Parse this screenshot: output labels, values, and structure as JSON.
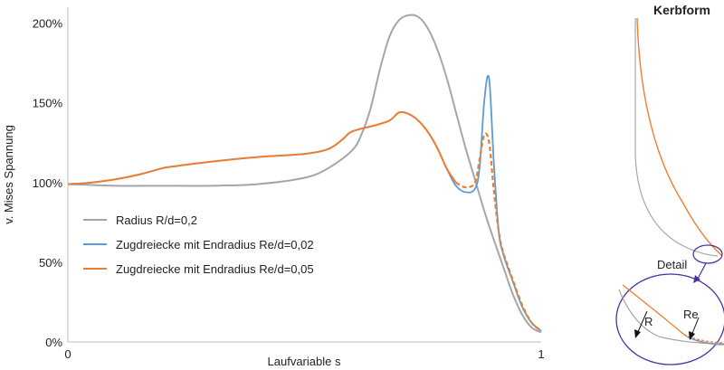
{
  "chart_data": {
    "type": "line",
    "title": "",
    "xlabel": "Laufvariable s",
    "ylabel": "v. Mises Spannung",
    "xlim": [
      0,
      1
    ],
    "ylim": [
      0,
      2.1
    ],
    "x_ticks": [
      0,
      1
    ],
    "x_tick_labels": [
      "0",
      "1"
    ],
    "y_ticks": [
      0,
      0.5,
      1.0,
      1.5,
      2.0
    ],
    "y_tick_labels": [
      "0%",
      "50%",
      "100%",
      "150%",
      "200%"
    ],
    "grid": false,
    "legend_position": "lower-left",
    "series": [
      {
        "name": "Radius R/d=0,2",
        "color": "#a6a6a6",
        "style": "solid",
        "x": [
          0,
          0.1,
          0.2,
          0.3,
          0.4,
          0.5,
          0.55,
          0.6,
          0.62,
          0.64,
          0.66,
          0.68,
          0.7,
          0.72,
          0.74,
          0.76,
          0.78,
          0.8,
          0.82,
          0.84,
          0.86,
          0.88,
          0.9,
          0.92,
          0.94,
          0.96,
          0.98,
          1.0
        ],
        "y": [
          0.99,
          0.98,
          0.98,
          0.98,
          0.99,
          1.03,
          1.09,
          1.2,
          1.3,
          1.47,
          1.72,
          1.92,
          2.02,
          2.05,
          2.04,
          1.97,
          1.84,
          1.66,
          1.44,
          1.22,
          1.02,
          0.82,
          0.64,
          0.47,
          0.3,
          0.17,
          0.09,
          0.06
        ]
      },
      {
        "name": "Zugdreiecke mit Endradius Re/d=0,02",
        "color": "#5b9bd5",
        "style": "solid",
        "x": [
          0,
          0.05,
          0.1,
          0.15,
          0.2,
          0.22,
          0.3,
          0.4,
          0.5,
          0.55,
          0.58,
          0.6,
          0.65,
          0.68,
          0.7,
          0.72,
          0.74,
          0.76,
          0.78,
          0.8,
          0.82,
          0.84,
          0.86,
          0.87,
          0.88,
          0.89,
          0.9,
          0.91,
          0.92,
          0.94,
          0.96,
          0.98,
          1.0
        ],
        "y": [
          0.99,
          1.0,
          1.02,
          1.05,
          1.09,
          1.1,
          1.13,
          1.16,
          1.18,
          1.21,
          1.27,
          1.32,
          1.36,
          1.39,
          1.44,
          1.43,
          1.39,
          1.32,
          1.22,
          1.09,
          0.98,
          0.94,
          0.96,
          1.1,
          1.52,
          1.65,
          1.12,
          0.7,
          0.55,
          0.38,
          0.22,
          0.12,
          0.07
        ]
      },
      {
        "name": "Zugdreiecke mit Endradius Re/d=0,05",
        "color": "#ed7d31",
        "style": "solid-then-dashed",
        "x": [
          0,
          0.05,
          0.1,
          0.15,
          0.2,
          0.22,
          0.3,
          0.4,
          0.5,
          0.55,
          0.58,
          0.6,
          0.65,
          0.68,
          0.7,
          0.72,
          0.74,
          0.76,
          0.78,
          0.8,
          0.82,
          0.84,
          0.86,
          0.87,
          0.88,
          0.89,
          0.9,
          0.91,
          0.92,
          0.94,
          0.96,
          0.98,
          1.0
        ],
        "y": [
          0.99,
          1.0,
          1.02,
          1.05,
          1.09,
          1.1,
          1.13,
          1.16,
          1.18,
          1.21,
          1.27,
          1.32,
          1.36,
          1.39,
          1.44,
          1.43,
          1.39,
          1.32,
          1.22,
          1.09,
          1.0,
          0.97,
          1.0,
          1.15,
          1.3,
          1.25,
          0.95,
          0.7,
          0.56,
          0.39,
          0.23,
          0.12,
          0.07
        ]
      }
    ]
  },
  "side_diagram": {
    "title": "Kerbform",
    "detail_label": "Detail",
    "label_r": "R",
    "label_re": "Re",
    "colors": {
      "radius": "#a6a6a6",
      "zugdreiecke": "#ed7d31",
      "detail_circle": "#4b2ea0"
    }
  }
}
